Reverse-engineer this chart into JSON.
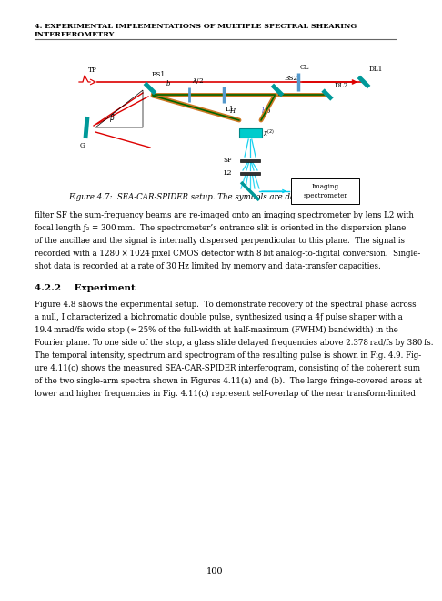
{
  "chapter_title_line1": "4. EXPERIMENTAL IMPLEMENTATIONS OF MULTIPLE SPECTRAL SHEARING",
  "chapter_title_line2": "INTERFEROMETRY",
  "page_number": "100",
  "figure_caption": "Figure 4.7:  SEA-CAR-SPIDER setup. The symbols are defined in the text.",
  "section_title": "4.2.2    Experiment",
  "body_text_1_lines": [
    "filter SF the sum-frequency beams are re-imaged onto an imaging spectrometer by lens L2 with",
    "focal length ƒ₂ = 300 mm.  The spectrometer’s entrance slit is oriented in the dispersion plane",
    "of the ancillae and the signal is internally dispersed perpendicular to this plane.  The signal is",
    "recorded with a 1280 × 1024 pixel CMOS detector with 8 bit analog-to-digital conversion.  Single-",
    "shot data is recorded at a rate of 30 Hz limited by memory and data-transfer capacities."
  ],
  "body_text_2_lines": [
    "Figure 4.8 shows the experimental setup.  To demonstrate recovery of the spectral phase across",
    "a null, I characterized a bichromatic double pulse, synthesized using a 4ƒ pulse shaper with a",
    "19.4 mrad/fs wide stop (≈ 25% of the full-width at half-maximum (FWHM) bandwidth) in the",
    "Fourier plane. To one side of the stop, a glass slide delayed frequencies above 2.378 rad/fs by 380 fs.",
    "The temporal intensity, spectrum and spectrogram of the resulting pulse is shown in Fig. 4.9. Fig-",
    "ure 4.11(c) shows the measured SEA-CAR-SPIDER interferogram, consisting of the coherent sum",
    "of the two single-arm spectra shown in Figures 4.11(a) and (b).  The large fringe-covered areas at",
    "lower and higher frequencies in Fig. 4.11(c) represent self-overlap of the near transform-limited"
  ],
  "teal": "#009999",
  "red_beam": "#DD0000",
  "brown": "#8B5A00",
  "cyan_beam": "#00CCEE",
  "purple_beam": "#AA44CC",
  "orange_brown": "#CC7722"
}
